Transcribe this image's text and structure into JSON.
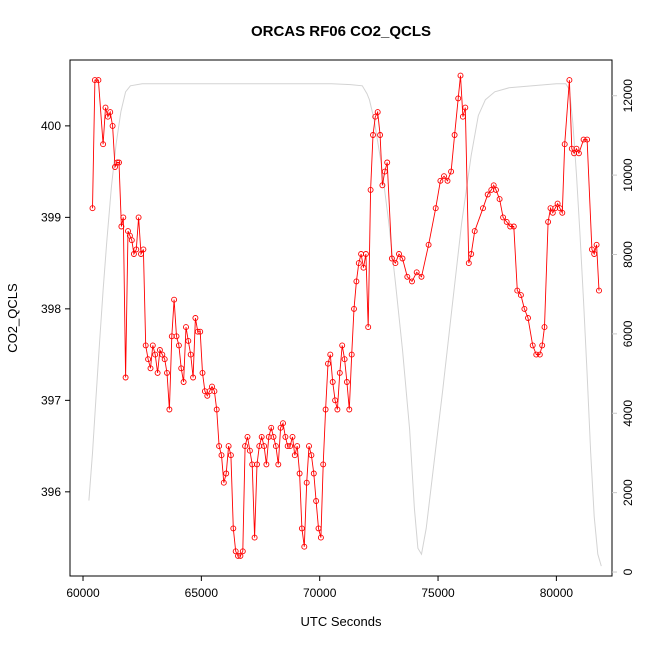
{
  "chart_data": {
    "type": "line",
    "title": "ORCAS RF06 CO2_QCLS",
    "xlabel": "UTC Seconds",
    "ylabel": "CO2_QCLS",
    "xlim": [
      59450,
      82350
    ],
    "ylim_left": [
      395.08,
      400.72
    ],
    "ylim_right": [
      -100,
      12900
    ],
    "xticks": [
      60000,
      65000,
      70000,
      75000,
      80000
    ],
    "yticks_left": [
      396,
      397,
      398,
      399,
      400
    ],
    "yticks_right": [
      0,
      2000,
      4000,
      6000,
      8000,
      10000,
      12000
    ],
    "grid": false,
    "legend": "none",
    "colors": {
      "background": "#ffffff",
      "box": "#000000",
      "axis_text": "#000000",
      "right_axis_text": "#c8c8c8",
      "red_series": "#ff0000",
      "gray_series": "#d3d3d3"
    },
    "series": [
      {
        "name": "right-axis-series",
        "axis": "right",
        "marker": "none",
        "color": "#d3d3d3",
        "points": [
          [
            60250,
            1800
          ],
          [
            60400,
            3000
          ],
          [
            60550,
            4400
          ],
          [
            60700,
            5800
          ],
          [
            60850,
            7100
          ],
          [
            61000,
            8300
          ],
          [
            61200,
            9700
          ],
          [
            61400,
            10800
          ],
          [
            61600,
            11600
          ],
          [
            61800,
            12100
          ],
          [
            62000,
            12250
          ],
          [
            62500,
            12300
          ],
          [
            63500,
            12300
          ],
          [
            65000,
            12300
          ],
          [
            67000,
            12300
          ],
          [
            69000,
            12300
          ],
          [
            70500,
            12300
          ],
          [
            71300,
            12280
          ],
          [
            71800,
            12250
          ],
          [
            72000,
            12050
          ],
          [
            72100,
            11900
          ],
          [
            72300,
            11400
          ],
          [
            72600,
            10300
          ],
          [
            72900,
            8900
          ],
          [
            73200,
            7300
          ],
          [
            73500,
            5600
          ],
          [
            73800,
            3600
          ],
          [
            74000,
            1600
          ],
          [
            74150,
            600
          ],
          [
            74300,
            450
          ],
          [
            74500,
            1100
          ],
          [
            74800,
            2600
          ],
          [
            75200,
            4600
          ],
          [
            75600,
            6700
          ],
          [
            76000,
            8800
          ],
          [
            76400,
            10500
          ],
          [
            76700,
            11500
          ],
          [
            77000,
            11900
          ],
          [
            77400,
            12100
          ],
          [
            78000,
            12200
          ],
          [
            79000,
            12250
          ],
          [
            80000,
            12300
          ],
          [
            80400,
            12300
          ],
          [
            80550,
            12150
          ],
          [
            80700,
            11300
          ],
          [
            80850,
            10000
          ],
          [
            81000,
            8500
          ],
          [
            81150,
            6800
          ],
          [
            81300,
            5000
          ],
          [
            81450,
            3000
          ],
          [
            81600,
            1400
          ],
          [
            81750,
            450
          ],
          [
            81900,
            150
          ]
        ]
      },
      {
        "name": "CO2_QCLS",
        "axis": "left",
        "marker": "open-circle",
        "color": "#ff0000",
        "points": [
          [
            60400,
            399.1
          ],
          [
            60500,
            400.5
          ],
          [
            60650,
            400.5
          ],
          [
            60850,
            399.8
          ],
          [
            60950,
            400.2
          ],
          [
            61050,
            400.1
          ],
          [
            61150,
            400.15
          ],
          [
            61250,
            400.0
          ],
          [
            61350,
            399.55
          ],
          [
            61450,
            399.6
          ],
          [
            61520,
            399.6
          ],
          [
            61620,
            398.9
          ],
          [
            61700,
            399.0
          ],
          [
            61800,
            397.25
          ],
          [
            61900,
            398.85
          ],
          [
            61980,
            398.8
          ],
          [
            62060,
            398.75
          ],
          [
            62150,
            398.6
          ],
          [
            62250,
            398.65
          ],
          [
            62350,
            399.0
          ],
          [
            62450,
            398.6
          ],
          [
            62550,
            398.65
          ],
          [
            62650,
            397.6
          ],
          [
            62750,
            397.45
          ],
          [
            62850,
            397.35
          ],
          [
            62950,
            397.6
          ],
          [
            63050,
            397.5
          ],
          [
            63150,
            397.3
          ],
          [
            63250,
            397.55
          ],
          [
            63350,
            397.5
          ],
          [
            63450,
            397.45
          ],
          [
            63550,
            397.3
          ],
          [
            63650,
            396.9
          ],
          [
            63750,
            397.7
          ],
          [
            63850,
            398.1
          ],
          [
            63950,
            397.7
          ],
          [
            64050,
            397.6
          ],
          [
            64150,
            397.35
          ],
          [
            64250,
            397.2
          ],
          [
            64350,
            397.8
          ],
          [
            64450,
            397.65
          ],
          [
            64550,
            397.5
          ],
          [
            64650,
            397.25
          ],
          [
            64750,
            397.9
          ],
          [
            64850,
            397.75
          ],
          [
            64950,
            397.75
          ],
          [
            65050,
            397.3
          ],
          [
            65150,
            397.1
          ],
          [
            65250,
            397.05
          ],
          [
            65350,
            397.1
          ],
          [
            65450,
            397.15
          ],
          [
            65550,
            397.1
          ],
          [
            65650,
            396.9
          ],
          [
            65750,
            396.5
          ],
          [
            65850,
            396.4
          ],
          [
            65950,
            396.1
          ],
          [
            66050,
            396.2
          ],
          [
            66150,
            396.5
          ],
          [
            66250,
            396.4
          ],
          [
            66350,
            395.6
          ],
          [
            66450,
            395.35
          ],
          [
            66550,
            395.3
          ],
          [
            66650,
            395.3
          ],
          [
            66750,
            395.35
          ],
          [
            66850,
            396.5
          ],
          [
            66950,
            396.6
          ],
          [
            67050,
            396.45
          ],
          [
            67150,
            396.3
          ],
          [
            67250,
            395.5
          ],
          [
            67350,
            396.3
          ],
          [
            67450,
            396.5
          ],
          [
            67550,
            396.6
          ],
          [
            67650,
            396.5
          ],
          [
            67750,
            396.3
          ],
          [
            67850,
            396.6
          ],
          [
            67950,
            396.7
          ],
          [
            68050,
            396.6
          ],
          [
            68150,
            396.5
          ],
          [
            68250,
            396.3
          ],
          [
            68350,
            396.7
          ],
          [
            68450,
            396.75
          ],
          [
            68550,
            396.6
          ],
          [
            68650,
            396.5
          ],
          [
            68750,
            396.5
          ],
          [
            68850,
            396.6
          ],
          [
            68950,
            396.4
          ],
          [
            69050,
            396.5
          ],
          [
            69150,
            396.2
          ],
          [
            69250,
            395.6
          ],
          [
            69350,
            395.4
          ],
          [
            69450,
            396.1
          ],
          [
            69550,
            396.5
          ],
          [
            69650,
            396.4
          ],
          [
            69750,
            396.2
          ],
          [
            69850,
            395.9
          ],
          [
            69950,
            395.6
          ],
          [
            70050,
            395.5
          ],
          [
            70150,
            396.3
          ],
          [
            70250,
            396.9
          ],
          [
            70350,
            397.4
          ],
          [
            70450,
            397.5
          ],
          [
            70550,
            397.2
          ],
          [
            70650,
            397.0
          ],
          [
            70750,
            396.9
          ],
          [
            70850,
            397.3
          ],
          [
            70950,
            397.6
          ],
          [
            71050,
            397.45
          ],
          [
            71150,
            397.2
          ],
          [
            71250,
            396.9
          ],
          [
            71350,
            397.5
          ],
          [
            71450,
            398.0
          ],
          [
            71550,
            398.3
          ],
          [
            71650,
            398.5
          ],
          [
            71750,
            398.6
          ],
          [
            71850,
            398.45
          ],
          [
            71950,
            398.6
          ],
          [
            72050,
            397.8
          ],
          [
            72150,
            399.3
          ],
          [
            72250,
            399.9
          ],
          [
            72350,
            400.1
          ],
          [
            72450,
            400.15
          ],
          [
            72550,
            399.9
          ],
          [
            72650,
            399.35
          ],
          [
            72750,
            399.5
          ],
          [
            72850,
            399.6
          ],
          [
            73050,
            398.55
          ],
          [
            73200,
            398.5
          ],
          [
            73350,
            398.6
          ],
          [
            73500,
            398.55
          ],
          [
            73700,
            398.35
          ],
          [
            73900,
            398.3
          ],
          [
            74100,
            398.4
          ],
          [
            74300,
            398.35
          ],
          [
            74600,
            398.7
          ],
          [
            74900,
            399.1
          ],
          [
            75100,
            399.4
          ],
          [
            75250,
            399.45
          ],
          [
            75400,
            399.4
          ],
          [
            75550,
            399.5
          ],
          [
            75700,
            399.9
          ],
          [
            75850,
            400.3
          ],
          [
            75950,
            400.55
          ],
          [
            76050,
            400.1
          ],
          [
            76150,
            400.2
          ],
          [
            76300,
            398.5
          ],
          [
            76400,
            398.6
          ],
          [
            76550,
            398.85
          ],
          [
            76900,
            399.1
          ],
          [
            77100,
            399.25
          ],
          [
            77250,
            399.3
          ],
          [
            77350,
            399.35
          ],
          [
            77450,
            399.3
          ],
          [
            77600,
            399.2
          ],
          [
            77750,
            399.0
          ],
          [
            77900,
            398.95
          ],
          [
            78050,
            398.9
          ],
          [
            78200,
            398.9
          ],
          [
            78350,
            398.2
          ],
          [
            78500,
            398.15
          ],
          [
            78650,
            398.0
          ],
          [
            78800,
            397.9
          ],
          [
            79000,
            397.6
          ],
          [
            79150,
            397.5
          ],
          [
            79300,
            397.5
          ],
          [
            79400,
            397.6
          ],
          [
            79500,
            397.8
          ],
          [
            79650,
            398.95
          ],
          [
            79750,
            399.1
          ],
          [
            79850,
            399.05
          ],
          [
            79950,
            399.1
          ],
          [
            80050,
            399.15
          ],
          [
            80150,
            399.1
          ],
          [
            80250,
            399.05
          ],
          [
            80350,
            399.8
          ],
          [
            80550,
            400.5
          ],
          [
            80650,
            399.75
          ],
          [
            80750,
            399.7
          ],
          [
            80850,
            399.75
          ],
          [
            80950,
            399.7
          ],
          [
            81150,
            399.85
          ],
          [
            81300,
            399.85
          ],
          [
            81500,
            398.65
          ],
          [
            81600,
            398.6
          ],
          [
            81700,
            398.7
          ],
          [
            81800,
            398.2
          ]
        ]
      }
    ]
  }
}
